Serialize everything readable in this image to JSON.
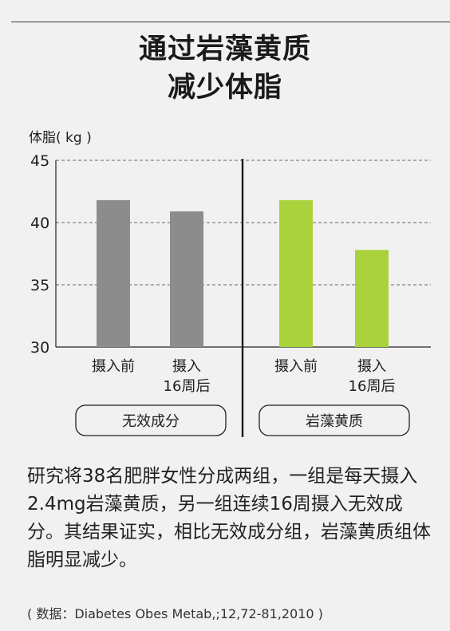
{
  "title": {
    "line1": "通过岩藻黄质",
    "line2": "减少体脂"
  },
  "chart_data": {
    "type": "bar",
    "ylabel": "体脂( kg )",
    "ylim": [
      30,
      45
    ],
    "yticks": [
      30,
      35,
      40,
      45
    ],
    "grid": true,
    "groups": [
      {
        "name": "无效成分",
        "color": "#8c8c8c",
        "categories": [
          "摄入前",
          "摄入\n16周后"
        ],
        "values": [
          41.8,
          40.9
        ]
      },
      {
        "name": "岩藻黄质",
        "color": "#aad23c",
        "categories": [
          "摄入前",
          "摄入\n16周后"
        ],
        "values": [
          41.8,
          37.8
        ]
      }
    ]
  },
  "caption": "研究将38名肥胖女性分成两组，一组是每天摄入2.4mg岩藻黄质，另一组连续16周摄入无效成分。其结果证实，相比无效成分组，岩藻黄质组体脂明显减少。",
  "source": "( 数据：Diabetes Obes Metab,;12,72-81,2010 )"
}
